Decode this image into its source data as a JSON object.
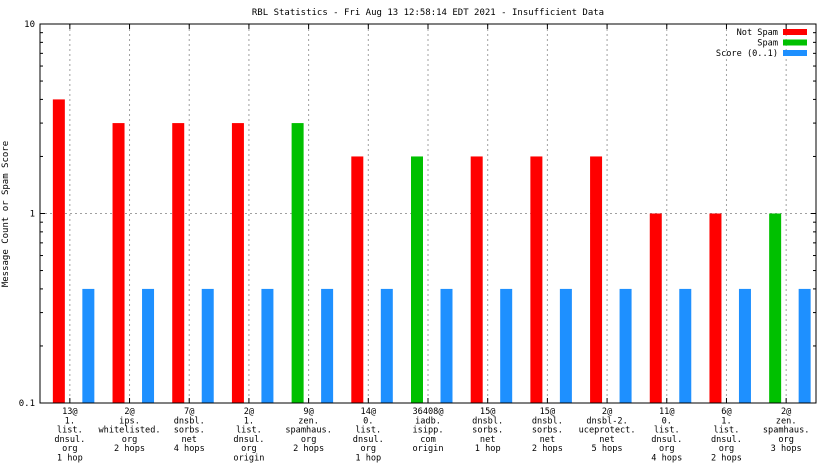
{
  "chart_data": {
    "type": "bar",
    "title": "RBL Statistics - Fri Aug 13 12:58:14 EDT 2021 - Insufficient Data",
    "ylabel": "Message Count or Spam Score",
    "xlabel": "",
    "yscale": "log",
    "ylim": [
      0.1,
      10
    ],
    "yticks": [
      {
        "value": 0.1,
        "label": "0.1"
      },
      {
        "value": 1,
        "label": "1"
      },
      {
        "value": 10,
        "label": "10"
      }
    ],
    "grid": true,
    "legend_position": "top-right",
    "categories": [
      [
        "13@",
        "1.",
        "list.",
        "dnsul.",
        "org",
        "1 hop"
      ],
      [
        "2@",
        "ips.",
        "whitelisted.",
        "org",
        "2 hops"
      ],
      [
        "7@",
        "dnsbl.",
        "sorbs.",
        "net",
        "4 hops"
      ],
      [
        "2@",
        "1.",
        "list.",
        "dnsul.",
        "org",
        "origin"
      ],
      [
        "9@",
        "zen.",
        "spamhaus.",
        "org",
        "2 hops"
      ],
      [
        "14@",
        "0.",
        "list.",
        "dnsul.",
        "org",
        "1 hop"
      ],
      [
        "36408@",
        "iadb.",
        "isipp.",
        "com",
        "origin"
      ],
      [
        "15@",
        "dnsbl.",
        "sorbs.",
        "net",
        "1 hop"
      ],
      [
        "15@",
        "dnsbl.",
        "sorbs.",
        "net",
        "2 hops"
      ],
      [
        "2@",
        "dnsbl-2.",
        "uceprotect.",
        "net",
        "5 hops"
      ],
      [
        "11@",
        "0.",
        "list.",
        "dnsul.",
        "org",
        "4 hops"
      ],
      [
        "6@",
        "1.",
        "list.",
        "dnsul.",
        "org",
        "2 hops"
      ],
      [
        "2@",
        "zen.",
        "spamhaus.",
        "org",
        "3 hops"
      ]
    ],
    "series": [
      {
        "name": "Not Spam",
        "color": "#ff0000",
        "values": [
          4,
          3,
          3,
          3,
          null,
          2,
          null,
          2,
          2,
          2,
          1,
          1,
          null
        ]
      },
      {
        "name": "Spam",
        "color": "#00c000",
        "values": [
          null,
          null,
          null,
          null,
          3,
          null,
          2,
          null,
          null,
          null,
          null,
          null,
          1
        ]
      },
      {
        "name": "Score (0..1)",
        "color": "#1e90ff",
        "values": [
          0.4,
          0.4,
          0.4,
          0.4,
          0.4,
          0.4,
          0.4,
          0.4,
          0.4,
          0.4,
          0.4,
          0.4,
          0.4
        ]
      }
    ]
  }
}
